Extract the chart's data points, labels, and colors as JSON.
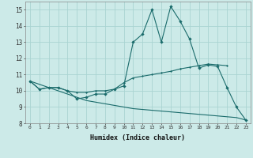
{
  "xlabel": "Humidex (Indice chaleur)",
  "background_color": "#cceae8",
  "grid_color": "#aad4d2",
  "line_color": "#1a6b6b",
  "x": [
    0,
    1,
    2,
    3,
    4,
    5,
    6,
    7,
    8,
    9,
    10,
    11,
    12,
    13,
    14,
    15,
    16,
    17,
    18,
    19,
    20,
    21,
    22,
    23
  ],
  "line1_y": [
    10.6,
    10.1,
    10.2,
    10.2,
    10.0,
    9.5,
    9.6,
    9.8,
    9.8,
    10.1,
    10.3,
    13.0,
    13.5,
    15.0,
    13.0,
    15.2,
    14.3,
    13.2,
    11.4,
    11.6,
    11.5,
    10.2,
    9.0,
    8.2
  ],
  "line2_x": [
    0,
    1,
    2,
    3,
    4,
    5,
    6,
    7,
    8,
    9,
    10,
    11,
    12,
    13,
    14,
    15,
    16,
    17,
    18,
    19,
    20,
    21
  ],
  "line2_y": [
    10.6,
    10.1,
    10.2,
    10.2,
    10.0,
    9.9,
    9.9,
    10.0,
    10.0,
    10.1,
    10.5,
    10.8,
    10.9,
    11.0,
    11.1,
    11.2,
    11.35,
    11.45,
    11.55,
    11.65,
    11.6,
    11.55
  ],
  "line3_x": [
    0,
    1,
    2,
    3,
    4,
    5,
    6,
    7,
    8,
    9,
    10,
    11,
    12,
    13,
    14,
    15,
    16,
    17,
    18,
    19,
    20,
    21,
    22,
    23
  ],
  "line3_y": [
    10.6,
    10.4,
    10.2,
    10.0,
    9.8,
    9.6,
    9.4,
    9.3,
    9.2,
    9.1,
    9.0,
    8.9,
    8.85,
    8.8,
    8.75,
    8.7,
    8.65,
    8.6,
    8.55,
    8.5,
    8.45,
    8.4,
    8.35,
    8.2
  ],
  "ylim": [
    8,
    15.5
  ],
  "xlim": [
    -0.5,
    23.5
  ],
  "yticks": [
    8,
    9,
    10,
    11,
    12,
    13,
    14,
    15
  ],
  "xticks": [
    0,
    1,
    2,
    3,
    4,
    5,
    6,
    7,
    8,
    9,
    10,
    11,
    12,
    13,
    14,
    15,
    16,
    17,
    18,
    19,
    20,
    21,
    22,
    23
  ]
}
